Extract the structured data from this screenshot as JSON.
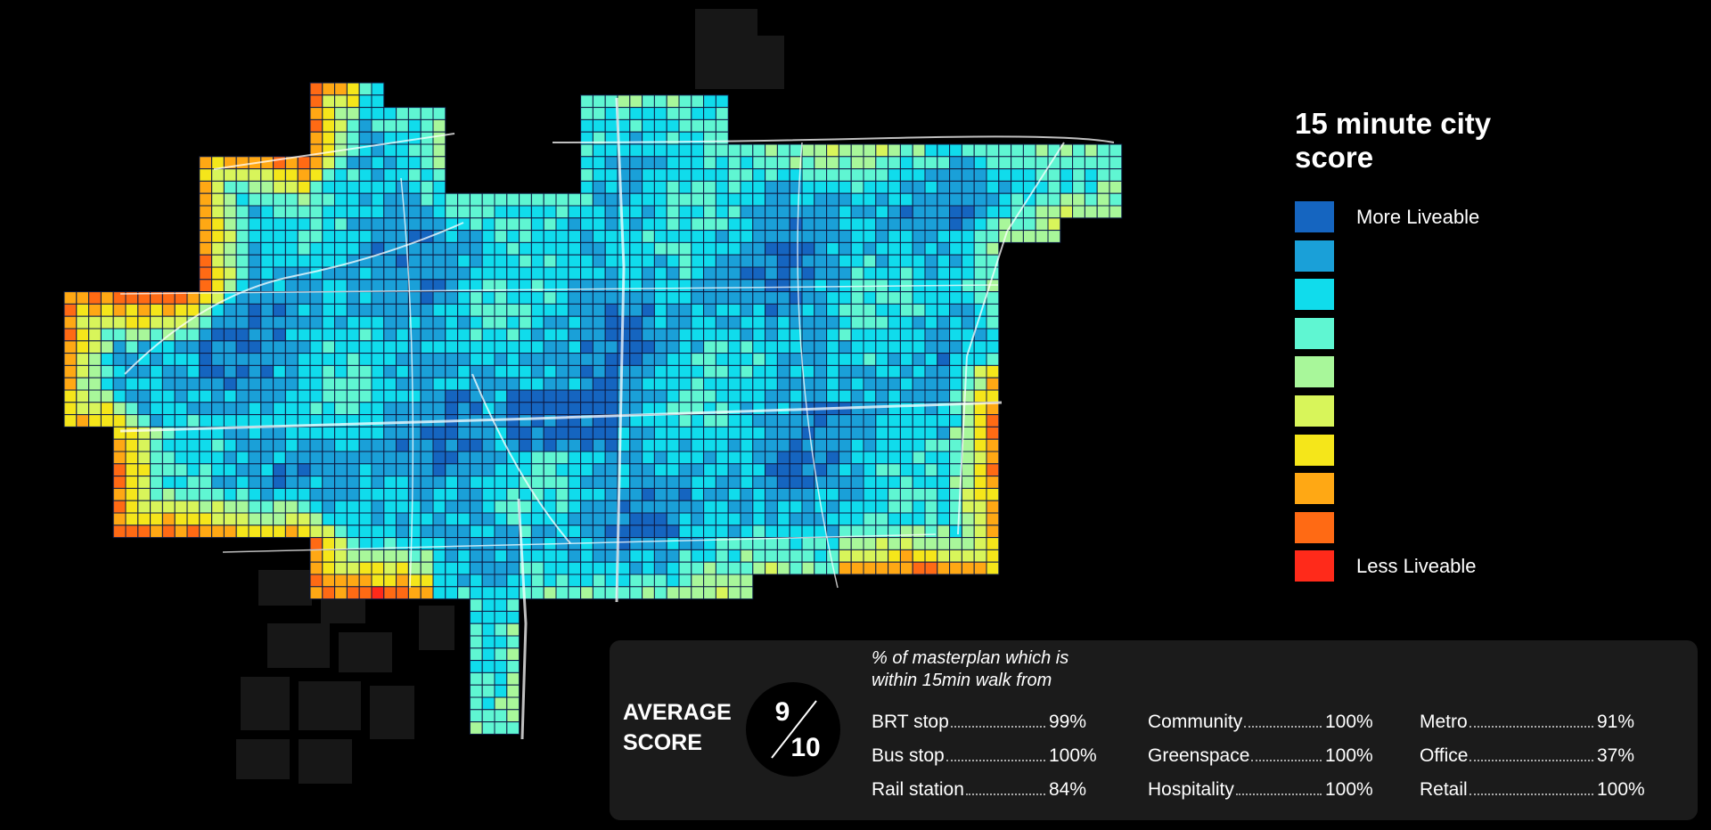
{
  "legend": {
    "title": "15 minute city score",
    "items": [
      {
        "color": "#1565c0",
        "label": "More Liveable"
      },
      {
        "color": "#1aa0d8"
      },
      {
        "color": "#10dcec"
      },
      {
        "color": "#5ff6d2"
      },
      {
        "color": "#a8f79a"
      },
      {
        "color": "#d8f55a"
      },
      {
        "color": "#f5e61a"
      },
      {
        "color": "#ffa814"
      },
      {
        "color": "#ff6a14"
      },
      {
        "color": "#ff2a1a",
        "label": "Less Liveable"
      }
    ]
  },
  "summary": {
    "label": "AVERAGE SCORE",
    "score": 9,
    "out_of": 10,
    "intro": "% of masterplan which is within 15min walk from",
    "metrics": [
      [
        {
          "name": "BRT stop",
          "value": "99%"
        },
        {
          "name": "Bus stop",
          "value": "100%"
        },
        {
          "name": "Rail station",
          "value": "84%"
        }
      ],
      [
        {
          "name": "Community",
          "value": "100%"
        },
        {
          "name": "Greenspace",
          "value": "100%"
        },
        {
          "name": "Hospitality",
          "value": "100%"
        }
      ],
      [
        {
          "name": "Metro",
          "value": "91%"
        },
        {
          "name": "Office",
          "value": "37%"
        },
        {
          "name": "Retail",
          "value": "100%"
        }
      ]
    ]
  }
}
